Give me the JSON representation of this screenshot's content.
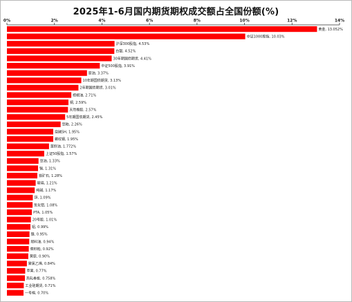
{
  "chart_data": {
    "type": "bar",
    "orientation": "horizontal",
    "title": "2025年1-6月国内期货期权成交额占全国份额(%)",
    "xlabel": "",
    "ylabel": "",
    "xlim": [
      0,
      14
    ],
    "xticks": [
      "0%",
      "2%",
      "4%",
      "6%",
      "8%",
      "10%",
      "12%",
      "14%"
    ],
    "axis_position": "top",
    "grid": false,
    "bar_color": "#ff0000",
    "bars": [
      {
        "name": "黄金",
        "value": 13.052,
        "label": "黄金, 13.052%"
      },
      {
        "name": "中证1000股指",
        "value": 10.03,
        "label": "中证1000股指, 10.03%"
      },
      {
        "name": "沪深300股指",
        "value": 4.53,
        "label": "沪深300股指, 4.53%"
      },
      {
        "name": "白银",
        "value": 4.52,
        "label": "白银, 4.52%"
      },
      {
        "name": "30年期国债期货",
        "value": 4.41,
        "label": "30年期国债期货, 4.41%"
      },
      {
        "name": "中证500股指",
        "value": 3.91,
        "label": "中证500股指, 3.91%"
      },
      {
        "name": "原油",
        "value": 3.37,
        "label": "原油, 3.37%"
      },
      {
        "name": "10年期国债期货",
        "value": 3.13,
        "label": "10年期国债期货, 3.13%"
      },
      {
        "name": "2年期国债期货",
        "value": 3.01,
        "label": "2年期国债期货, 3.01%"
      },
      {
        "name": "棕榈油",
        "value": 2.71,
        "label": "棕榈油, 2.71%"
      },
      {
        "name": "铜",
        "value": 2.59,
        "label": "铜, 2.59%"
      },
      {
        "name": "天然橡胶",
        "value": 2.57,
        "label": "天然橡胶, 2.57%"
      },
      {
        "name": "5年期国债期货",
        "value": 2.45,
        "label": "5年期国债期货, 2.45%"
      },
      {
        "name": "豆粕",
        "value": 2.26,
        "label": "豆粕, 2.26%"
      },
      {
        "name": "烧碱SH",
        "value": 1.95,
        "label": "烧碱SH, 1.95%"
      },
      {
        "name": "螺纹钢",
        "value": 1.95,
        "label": "螺纹钢, 1.95%"
      },
      {
        "name": "菜籽油",
        "value": 1.772,
        "label": "菜籽油, 1.772%"
      },
      {
        "name": "上证50股指",
        "value": 1.57,
        "label": "上证50股指, 1.57%"
      },
      {
        "name": "豆油",
        "value": 1.33,
        "label": "豆油, 1.33%"
      },
      {
        "name": "锡",
        "value": 1.31,
        "label": "锡, 1.31%"
      },
      {
        "name": "铁矿石",
        "value": 1.28,
        "label": "铁矿石, 1.28%"
      },
      {
        "name": "玻璃",
        "value": 1.21,
        "label": "玻璃, 1.21%"
      },
      {
        "name": "纯碱",
        "value": 1.17,
        "label": "纯碱, 1.17%"
      },
      {
        "name": "锌",
        "value": 1.09,
        "label": "锌, 1.09%"
      },
      {
        "name": "氧化铝",
        "value": 1.08,
        "label": "氧化铝, 1.08%"
      },
      {
        "name": "PTA",
        "value": 1.05,
        "label": "PTA, 1.05%"
      },
      {
        "name": "20号胶",
        "value": 1.01,
        "label": "20号胶, 1.01%"
      },
      {
        "name": "铝",
        "value": 0.99,
        "label": "铝, 0.99%"
      },
      {
        "name": "镍",
        "value": 0.95,
        "label": "镍, 0.95%"
      },
      {
        "name": "燃料油",
        "value": 0.94,
        "label": "燃料油, 0.94%"
      },
      {
        "name": "菜籽粕",
        "value": 0.92,
        "label": "菜籽粕, 0.92%"
      },
      {
        "name": "黄原",
        "value": 0.9,
        "label": "黄原, 0.90%"
      },
      {
        "name": "聚氯乙烯",
        "value": 0.84,
        "label": "聚氯乙烯, 0.84%"
      },
      {
        "name": "苹果",
        "value": 0.77,
        "label": "苹果, 0.77%"
      },
      {
        "name": "热轧卷板",
        "value": 0.758,
        "label": "热轧卷板, 0.758%"
      },
      {
        "name": "工业硅期货",
        "value": 0.71,
        "label": "工业硅期货, 0.71%"
      },
      {
        "name": "一号棉",
        "value": 0.7,
        "label": "一号棉, 0.70%"
      }
    ]
  }
}
